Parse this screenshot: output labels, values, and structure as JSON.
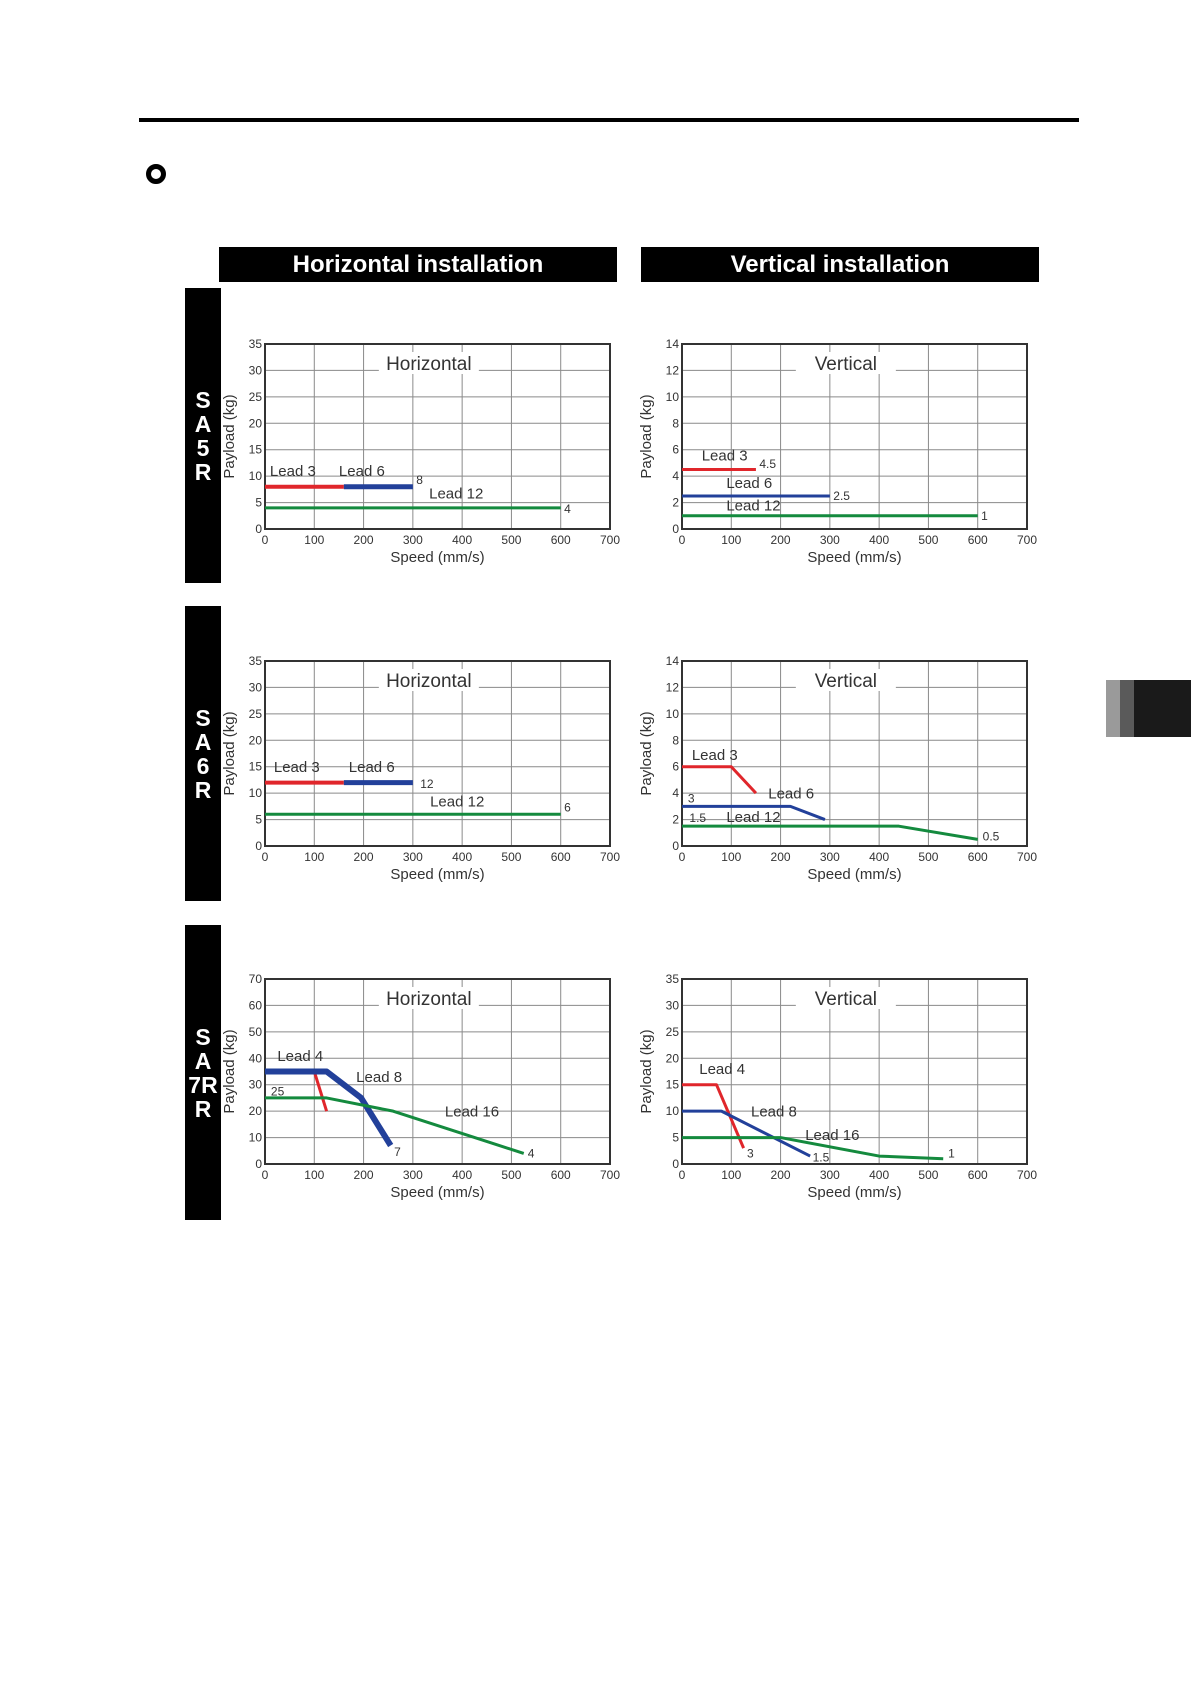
{
  "header": {
    "horizontal": "Horizontal installation",
    "vertical": "Vertical installation"
  },
  "rows": [
    {
      "letters": [
        "S",
        "A",
        "5",
        "R"
      ]
    },
    {
      "letters": [
        "S",
        "A",
        "6",
        "R"
      ]
    },
    {
      "letters": [
        "S",
        "A",
        "7R",
        "R"
      ]
    }
  ],
  "colors": {
    "red": "#e0262b",
    "blue": "#22409a",
    "green": "#148a3e"
  },
  "chart_data": [
    {
      "id": "sa5r-h",
      "type": "line",
      "title": "Horizontal",
      "xlabel": "Speed (mm/s)",
      "ylabel": "Payload (kg)",
      "xlim": [
        0,
        700
      ],
      "ylim": [
        0,
        35
      ],
      "xticks": [
        0,
        100,
        200,
        300,
        400,
        500,
        600,
        700
      ],
      "yticks": [
        0,
        5,
        10,
        15,
        20,
        25,
        30,
        35
      ],
      "series": [
        {
          "name": "Lead 3",
          "color": "red",
          "width": 4,
          "points": [
            [
              0,
              8
            ],
            [
              160,
              8
            ]
          ]
        },
        {
          "name": "Lead 6",
          "color": "blue",
          "width": 5,
          "points": [
            [
              160,
              8
            ],
            [
              300,
              8
            ]
          ]
        },
        {
          "name": "Lead 12",
          "color": "green",
          "width": 3,
          "points": [
            [
              0,
              4
            ],
            [
              600,
              4
            ]
          ]
        }
      ],
      "annotations": [
        {
          "text": "Lead 3",
          "x": 10,
          "y": 10,
          "size": "lbl"
        },
        {
          "text": "Lead 6",
          "x": 150,
          "y": 10,
          "size": "lbl"
        },
        {
          "text": "8",
          "x": 307,
          "y": 8.5,
          "size": "val"
        },
        {
          "text": "Lead 12",
          "x": 333,
          "y": 5.8,
          "size": "lbl"
        },
        {
          "text": "4",
          "x": 607,
          "y": 3,
          "size": "val"
        }
      ]
    },
    {
      "id": "sa5r-v",
      "type": "line",
      "title": "Vertical",
      "xlabel": "Speed (mm/s)",
      "ylabel": "Payload (kg)",
      "xlim": [
        0,
        700
      ],
      "ylim": [
        0,
        14
      ],
      "xticks": [
        0,
        100,
        200,
        300,
        400,
        500,
        600,
        700
      ],
      "yticks": [
        0,
        2,
        4,
        6,
        8,
        10,
        12,
        14
      ],
      "series": [
        {
          "name": "Lead 3",
          "color": "red",
          "width": 3,
          "points": [
            [
              0,
              4.5
            ],
            [
              150,
              4.5
            ]
          ]
        },
        {
          "name": "Lead 6",
          "color": "blue",
          "width": 3,
          "points": [
            [
              0,
              2.5
            ],
            [
              300,
              2.5
            ]
          ]
        },
        {
          "name": "Lead 12",
          "color": "green",
          "width": 3,
          "points": [
            [
              0,
              1
            ],
            [
              600,
              1
            ]
          ]
        }
      ],
      "annotations": [
        {
          "text": "Lead 3",
          "x": 40,
          "y": 5.2,
          "size": "lbl"
        },
        {
          "text": "4.5",
          "x": 157,
          "y": 4.6,
          "size": "val"
        },
        {
          "text": "Lead 6",
          "x": 90,
          "y": 3.1,
          "size": "lbl"
        },
        {
          "text": "2.5",
          "x": 307,
          "y": 2.2,
          "size": "val"
        },
        {
          "text": "Lead 12",
          "x": 90,
          "y": 1.4,
          "size": "lbl"
        },
        {
          "text": "1",
          "x": 607,
          "y": 0.7,
          "size": "val"
        }
      ]
    },
    {
      "id": "sa6r-h",
      "type": "line",
      "title": "Horizontal",
      "xlabel": "Speed (mm/s)",
      "ylabel": "Payload (kg)",
      "xlim": [
        0,
        700
      ],
      "ylim": [
        0,
        35
      ],
      "xticks": [
        0,
        100,
        200,
        300,
        400,
        500,
        600,
        700
      ],
      "yticks": [
        0,
        5,
        10,
        15,
        20,
        25,
        30,
        35
      ],
      "series": [
        {
          "name": "Lead 3",
          "color": "red",
          "width": 4,
          "points": [
            [
              0,
              12
            ],
            [
              160,
              12
            ]
          ]
        },
        {
          "name": "Lead 6",
          "color": "blue",
          "width": 5,
          "points": [
            [
              160,
              12
            ],
            [
              300,
              12
            ]
          ]
        },
        {
          "name": "Lead 12",
          "color": "green",
          "width": 3,
          "points": [
            [
              0,
              6
            ],
            [
              600,
              6
            ]
          ]
        }
      ],
      "annotations": [
        {
          "text": "Lead 3",
          "x": 18,
          "y": 14,
          "size": "lbl"
        },
        {
          "text": "Lead 6",
          "x": 170,
          "y": 14,
          "size": "lbl"
        },
        {
          "text": "12",
          "x": 315,
          "y": 11,
          "size": "val"
        },
        {
          "text": "Lead 12",
          "x": 335,
          "y": 7.5,
          "size": "lbl"
        },
        {
          "text": "6",
          "x": 607,
          "y": 6.5,
          "size": "val"
        }
      ]
    },
    {
      "id": "sa6r-v",
      "type": "line",
      "title": "Vertical",
      "xlabel": "Speed (mm/s)",
      "ylabel": "Payload (kg)",
      "xlim": [
        0,
        700
      ],
      "ylim": [
        0,
        14
      ],
      "xticks": [
        0,
        100,
        200,
        300,
        400,
        500,
        600,
        700
      ],
      "yticks": [
        0,
        2,
        4,
        6,
        8,
        10,
        12,
        14
      ],
      "series": [
        {
          "name": "Lead 3",
          "color": "red",
          "width": 3,
          "points": [
            [
              0,
              6
            ],
            [
              100,
              6
            ],
            [
              150,
              4
            ]
          ]
        },
        {
          "name": "Lead 6",
          "color": "blue",
          "width": 3,
          "points": [
            [
              0,
              3
            ],
            [
              220,
              3
            ],
            [
              290,
              2
            ]
          ]
        },
        {
          "name": "Lead 12",
          "color": "green",
          "width": 3,
          "points": [
            [
              0,
              1.5
            ],
            [
              440,
              1.5
            ],
            [
              600,
              0.5
            ]
          ]
        }
      ],
      "annotations": [
        {
          "text": "Lead 3",
          "x": 20,
          "y": 6.5,
          "size": "lbl"
        },
        {
          "text": "3",
          "x": 12,
          "y": 3.3,
          "size": "val"
        },
        {
          "text": "Lead 6",
          "x": 175,
          "y": 3.6,
          "size": "lbl"
        },
        {
          "text": "1.5",
          "x": 15,
          "y": 1.8,
          "size": "val"
        },
        {
          "text": "Lead 12",
          "x": 90,
          "y": 1.8,
          "size": "lbl"
        },
        {
          "text": "0.5",
          "x": 610,
          "y": 0.4,
          "size": "val"
        }
      ]
    },
    {
      "id": "sa7r-h",
      "type": "line",
      "title": "Horizontal",
      "xlabel": "Speed (mm/s)",
      "ylabel": "Payload (kg)",
      "xlim": [
        0,
        700
      ],
      "ylim": [
        0,
        70
      ],
      "xticks": [
        0,
        100,
        200,
        300,
        400,
        500,
        600,
        700
      ],
      "yticks": [
        0,
        10,
        20,
        30,
        40,
        50,
        60,
        70
      ],
      "series": [
        {
          "name": "Lead 4",
          "color": "red",
          "width": 3,
          "points": [
            [
              0,
              35
            ],
            [
              100,
              35
            ],
            [
              125,
              20
            ]
          ]
        },
        {
          "name": "Lead 8",
          "color": "blue",
          "width": 6,
          "points": [
            [
              0,
              35
            ],
            [
              125,
              35
            ],
            [
              195,
              25
            ],
            [
              255,
              7
            ]
          ]
        },
        {
          "name": "Lead 16",
          "color": "green",
          "width": 3,
          "points": [
            [
              0,
              25
            ],
            [
              125,
              25
            ],
            [
              260,
              20
            ],
            [
              525,
              4
            ]
          ]
        }
      ],
      "annotations": [
        {
          "text": "Lead 4",
          "x": 25,
          "y": 39,
          "size": "lbl"
        },
        {
          "text": "25",
          "x": 12,
          "y": 26,
          "size": "val"
        },
        {
          "text": "Lead 8",
          "x": 185,
          "y": 31,
          "size": "lbl"
        },
        {
          "text": "Lead 16",
          "x": 365,
          "y": 18,
          "size": "lbl"
        },
        {
          "text": "7",
          "x": 262,
          "y": 3,
          "size": "val"
        },
        {
          "text": "4",
          "x": 533,
          "y": 2.5,
          "size": "val"
        }
      ]
    },
    {
      "id": "sa7r-v",
      "type": "line",
      "title": "Vertical",
      "xlabel": "Speed (mm/s)",
      "ylabel": "Payload (kg)",
      "xlim": [
        0,
        700
      ],
      "ylim": [
        0,
        35
      ],
      "xticks": [
        0,
        100,
        200,
        300,
        400,
        500,
        600,
        700
      ],
      "yticks": [
        0,
        5,
        10,
        15,
        20,
        25,
        30,
        35
      ],
      "series": [
        {
          "name": "Lead 4",
          "color": "red",
          "width": 3,
          "points": [
            [
              0,
              15
            ],
            [
              70,
              15
            ],
            [
              125,
              3
            ]
          ]
        },
        {
          "name": "Lead 8",
          "color": "blue",
          "width": 3,
          "points": [
            [
              0,
              10
            ],
            [
              80,
              10
            ],
            [
              260,
              1.5
            ]
          ]
        },
        {
          "name": "Lead 16",
          "color": "green",
          "width": 3,
          "points": [
            [
              0,
              5
            ],
            [
              200,
              5
            ],
            [
              400,
              1.5
            ],
            [
              530,
              1
            ]
          ]
        }
      ],
      "annotations": [
        {
          "text": "Lead 4",
          "x": 35,
          "y": 17,
          "size": "lbl"
        },
        {
          "text": "Lead 8",
          "x": 140,
          "y": 9,
          "size": "lbl"
        },
        {
          "text": "3",
          "x": 132,
          "y": 1.2,
          "size": "val"
        },
        {
          "text": "Lead 16",
          "x": 250,
          "y": 4.5,
          "size": "lbl"
        },
        {
          "text": "1.5",
          "x": 265,
          "y": 0.5,
          "size": "val"
        },
        {
          "text": "1",
          "x": 540,
          "y": 1.2,
          "size": "val"
        }
      ]
    }
  ]
}
